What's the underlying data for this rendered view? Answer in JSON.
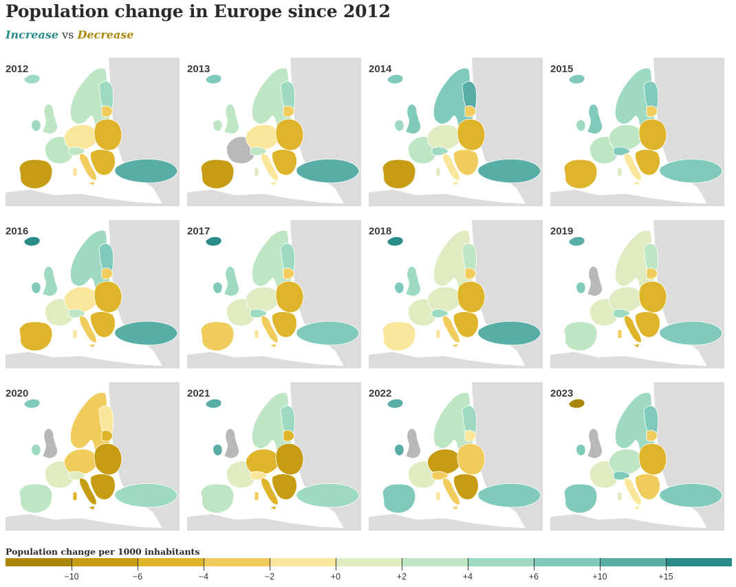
{
  "title": "Population change in Europe since 2012",
  "subtitle": {
    "increase": "Increase",
    "vs": "vs",
    "decrease": "Decrease"
  },
  "colors": {
    "increase": "#2a8c88",
    "decrease": "#a9850a",
    "background_land": "#dcdcdc",
    "no_data": "#b8b8b8"
  },
  "palette": [
    "#a9850a",
    "#c69d12",
    "#deb52a",
    "#f0cc5c",
    "#fae69a",
    "#dfebc0",
    "#bfe6c4",
    "#9edac2",
    "#7fcabb",
    "#58aea7",
    "#2a8c88"
  ],
  "panels": [
    {
      "year": "2012",
      "ireland": 7,
      "iceland": 7,
      "uk": 6,
      "france": 6,
      "iberia": 1,
      "italy": 3,
      "nordic": 6,
      "east": 2,
      "balkans": 2,
      "turkey": 9,
      "cee": 4
    },
    {
      "year": "2013",
      "ireland": 6,
      "iceland": 8,
      "uk": 6,
      "france": -1,
      "iberia": 1,
      "italy": 4,
      "nordic": 6,
      "east": 2,
      "balkans": 2,
      "turkey": 9,
      "cee": 4
    },
    {
      "year": "2014",
      "ireland": 7,
      "iceland": 8,
      "uk": 8,
      "france": 6,
      "iberia": 1,
      "italy": 4,
      "nordic": 8,
      "east": 2,
      "balkans": 3,
      "turkey": 9,
      "cee": 5
    },
    {
      "year": "2015",
      "ireland": 7,
      "iceland": 8,
      "uk": 8,
      "france": 6,
      "iberia": 2,
      "italy": 4,
      "nordic": 7,
      "east": 2,
      "balkans": 2,
      "turkey": 8,
      "cee": 6
    },
    {
      "year": "2016",
      "ireland": 8,
      "iceland": 10,
      "uk": 7,
      "france": 5,
      "iberia": 2,
      "italy": 3,
      "nordic": 7,
      "east": 2,
      "balkans": 2,
      "turkey": 9,
      "cee": 4
    },
    {
      "year": "2017",
      "ireland": 8,
      "iceland": 10,
      "uk": 7,
      "france": 5,
      "iberia": 3,
      "italy": 3,
      "nordic": 6,
      "east": 2,
      "balkans": 2,
      "turkey": 8,
      "cee": 5
    },
    {
      "year": "2018",
      "ireland": 8,
      "iceland": 10,
      "uk": 7,
      "france": 5,
      "iberia": 4,
      "italy": 3,
      "nordic": 5,
      "east": 2,
      "balkans": 2,
      "turkey": 9,
      "cee": 5
    },
    {
      "year": "2019",
      "ireland": 8,
      "iceland": 9,
      "uk": -1,
      "france": 5,
      "iberia": 6,
      "italy": 2,
      "nordic": 5,
      "east": 2,
      "balkans": 2,
      "turkey": 8,
      "cee": 5
    },
    {
      "year": "2020",
      "ireland": 7,
      "iceland": 8,
      "uk": -1,
      "france": 5,
      "iberia": 6,
      "italy": 1,
      "nordic": 3,
      "east": 1,
      "balkans": 1,
      "turkey": 7,
      "cee": 3
    },
    {
      "year": "2021",
      "ireland": 9,
      "iceland": 9,
      "uk": -1,
      "france": 5,
      "iberia": 6,
      "italy": 2,
      "nordic": 6,
      "east": 1,
      "balkans": 1,
      "turkey": 7,
      "cee": 2
    },
    {
      "year": "2022",
      "ireland": 9,
      "iceland": 9,
      "uk": -1,
      "france": 5,
      "iberia": 8,
      "italy": 3,
      "nordic": 6,
      "east": 3,
      "balkans": 1,
      "turkey": 8,
      "cee": 1
    },
    {
      "year": "2023",
      "ireland": 8,
      "iceland": 0,
      "uk": -1,
      "france": 5,
      "iberia": 8,
      "italy": 4,
      "nordic": 7,
      "east": 2,
      "balkans": 3,
      "turkey": 8,
      "cee": 6
    }
  ],
  "legend": {
    "title": "Population change per 1000 inhabitants",
    "tick_labels": [
      "−10",
      "−6",
      "−4",
      "−2",
      "+0",
      "+2",
      "+4",
      "+6",
      "+10",
      "+15"
    ]
  }
}
